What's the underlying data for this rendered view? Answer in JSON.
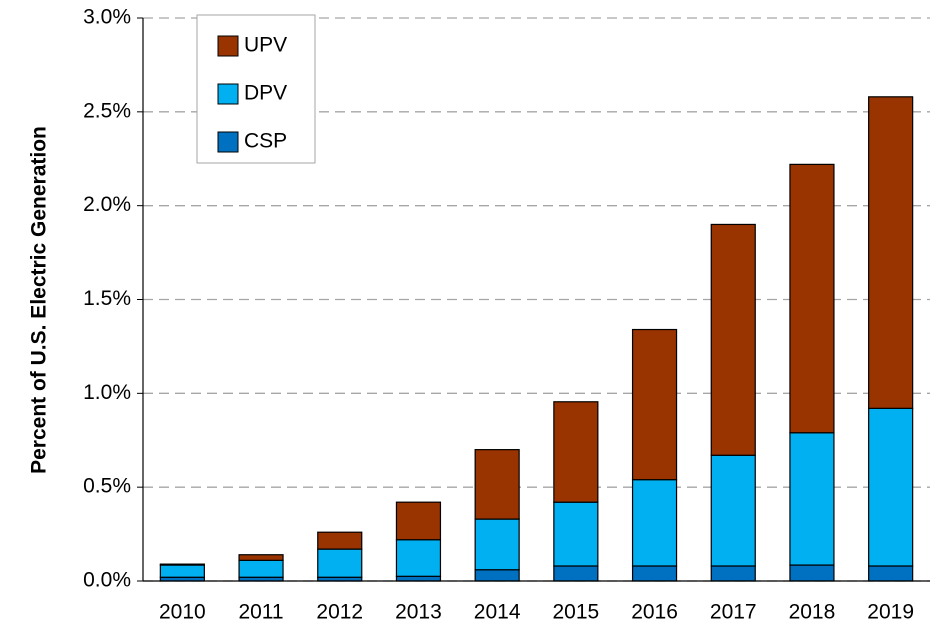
{
  "chart_data": {
    "type": "stacked_bar",
    "y_label": "Percent of U.S. Electric Generation",
    "categories": [
      "2010",
      "2011",
      "2012",
      "2013",
      "2014",
      "2015",
      "2016",
      "2017",
      "2018",
      "2019"
    ],
    "series": [
      {
        "name": "CSP",
        "color": "#0070c0",
        "values": [
          0.02,
          0.02,
          0.02,
          0.025,
          0.06,
          0.08,
          0.08,
          0.08,
          0.085,
          0.08
        ]
      },
      {
        "name": "DPV",
        "color": "#00b0f0",
        "values": [
          0.065,
          0.09,
          0.15,
          0.195,
          0.27,
          0.34,
          0.46,
          0.59,
          0.705,
          0.84
        ]
      },
      {
        "name": "UPV",
        "color": "#993300",
        "values": [
          0.005,
          0.03,
          0.09,
          0.2,
          0.37,
          0.535,
          0.8,
          1.23,
          1.43,
          1.66
        ]
      }
    ],
    "ylim": [
      0,
      3
    ],
    "yticks": [
      {
        "value": 0,
        "label": "0.0%"
      },
      {
        "value": 0.5,
        "label": "0.5%"
      },
      {
        "value": 1,
        "label": "1.0%"
      },
      {
        "value": 1.5,
        "label": "1.5%"
      },
      {
        "value": 2,
        "label": "2.0%"
      },
      {
        "value": 2.5,
        "label": "2.5%"
      },
      {
        "value": 3,
        "label": "3.0%"
      }
    ],
    "grid": true,
    "legend": "upper left"
  }
}
